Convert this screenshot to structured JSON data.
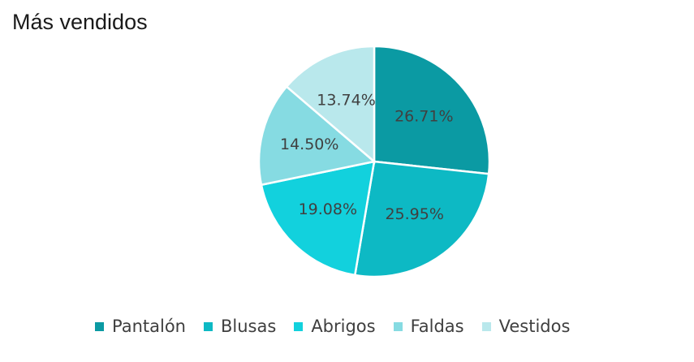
{
  "chart_data": {
    "type": "pie",
    "title": "Más vendidos",
    "categories": [
      "Pantalón",
      "Blusas",
      "Abrigos",
      "Faldas",
      "Vestidos"
    ],
    "values": [
      26.71,
      25.95,
      19.08,
      14.5,
      13.74
    ],
    "value_labels": [
      "26.71%",
      "25.95%",
      "19.08%",
      "14.50%",
      "13.74%"
    ],
    "colors": [
      "#0b9aa3",
      "#0db9c4",
      "#12d1dd",
      "#86dbe2",
      "#b9e8ec"
    ],
    "legend_position": "bottom"
  }
}
